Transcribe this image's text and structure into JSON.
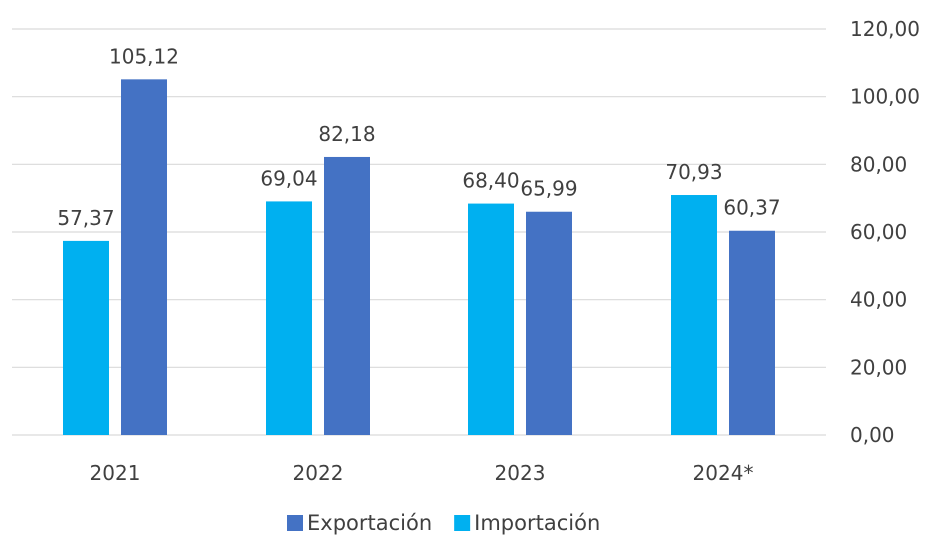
{
  "chart_data": {
    "type": "bar",
    "categories": [
      "2021",
      "2022",
      "2023",
      "2024*"
    ],
    "series": [
      {
        "name": "Importación",
        "values": [
          57.37,
          69.04,
          68.4,
          70.93
        ],
        "labels": [
          "57,37",
          "69,04",
          "68,40",
          "70,93"
        ],
        "color": "#00b0f0"
      },
      {
        "name": "Exportación",
        "values": [
          105.12,
          82.18,
          65.99,
          60.37
        ],
        "labels": [
          "105,12",
          "82,18",
          "65,99",
          "60,37"
        ],
        "color": "#4472c4"
      }
    ],
    "legend_order": [
      "Exportación",
      "Importación"
    ],
    "y_axis_side": "right",
    "ylim": [
      0,
      120
    ],
    "yticks": [
      0,
      20,
      40,
      60,
      80,
      100,
      120
    ],
    "ytick_labels": [
      "0,00",
      "20,00",
      "40,00",
      "60,00",
      "80,00",
      "100,00",
      "120,00"
    ],
    "grid": true,
    "legend_position": "bottom",
    "title": "",
    "xlabel": "",
    "ylabel": ""
  }
}
